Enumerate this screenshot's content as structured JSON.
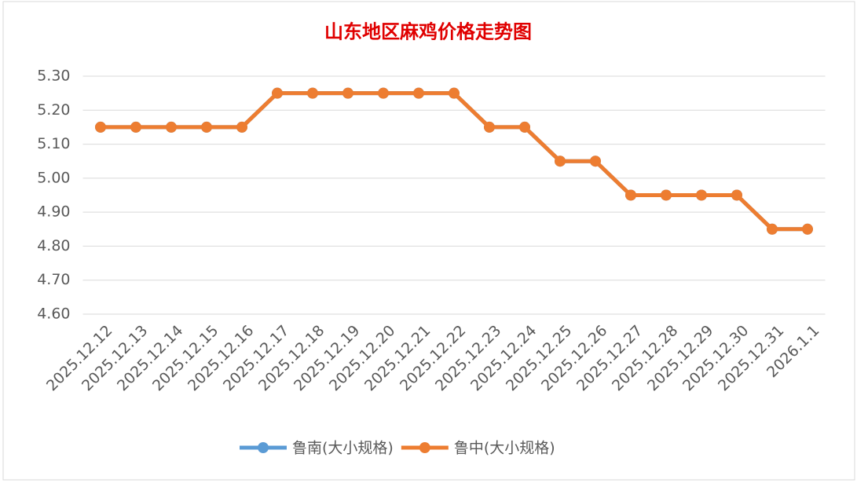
{
  "chart_data": {
    "type": "line",
    "title": "山东地区麻鸡价格走势图",
    "categories": [
      "2025.12.12",
      "2025.12.13",
      "2025.12.14",
      "2025.12.15",
      "2025.12.16",
      "2025.12.17",
      "2025.12.18",
      "2025.12.19",
      "2025.12.20",
      "2025.12.21",
      "2025.12.22",
      "2025.12.23",
      "2025.12.24",
      "2025.12.25",
      "2025.12.26",
      "2025.12.27",
      "2025.12.28",
      "2025.12.29",
      "2025.12.30",
      "2025.12.31",
      "2026.1.1"
    ],
    "series": [
      {
        "name": "鲁南(大小规格)",
        "color": "#5b9bd5",
        "values": [
          5.15,
          5.15,
          5.15,
          5.15,
          5.15,
          5.25,
          5.25,
          5.25,
          5.25,
          5.25,
          5.25,
          5.15,
          5.15,
          5.05,
          5.05,
          4.95,
          4.95,
          4.95,
          4.95,
          4.85,
          4.85
        ]
      },
      {
        "name": "鲁中(大小规格)",
        "color": "#ed7d31",
        "values": [
          5.15,
          5.15,
          5.15,
          5.15,
          5.15,
          5.25,
          5.25,
          5.25,
          5.25,
          5.25,
          5.25,
          5.15,
          5.15,
          5.05,
          5.05,
          4.95,
          4.95,
          4.95,
          4.95,
          4.85,
          4.85
        ]
      }
    ],
    "ylim": [
      4.6,
      5.3
    ],
    "yticks": [
      {
        "value": 4.6,
        "label": "4.60"
      },
      {
        "value": 4.7,
        "label": "4.70"
      },
      {
        "value": 4.8,
        "label": "4.80"
      },
      {
        "value": 4.9,
        "label": "4.90"
      },
      {
        "value": 5.0,
        "label": "5.00"
      },
      {
        "value": 5.1,
        "label": "5.10"
      },
      {
        "value": 5.2,
        "label": "5.20"
      },
      {
        "value": 5.3,
        "label": "5.30"
      }
    ],
    "grid": true,
    "legend": "bottom"
  }
}
